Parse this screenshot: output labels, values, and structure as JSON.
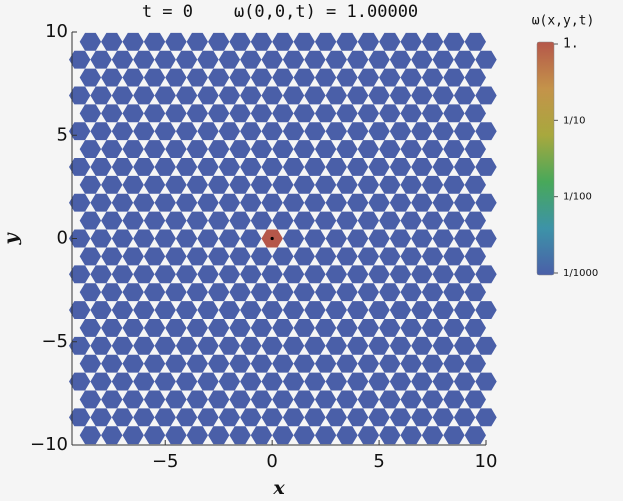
{
  "chart_data": {
    "type": "lattice",
    "title": "t = 0    ω(0,0,t) = 1.00000",
    "xlabel": "x",
    "ylabel": "y",
    "colorbar_label": "ω(x,y,t)",
    "xlim": [
      -9.5,
      10
    ],
    "ylim": [
      -10,
      10
    ],
    "xticks": [
      {
        "value": -5,
        "label": "−5"
      },
      0,
      5,
      10
    ],
    "yticks": [
      {
        "value": -10,
        "label": "−10"
      },
      {
        "value": -5,
        "label": "−5"
      },
      0,
      5,
      10
    ],
    "row_y": [
      -9.526,
      -8.66,
      -7.794,
      -6.928,
      -6.062,
      -5.196,
      -4.33,
      -3.464,
      -2.598,
      -1.732,
      -0.866,
      0,
      0.866,
      1.732,
      2.598,
      3.464,
      4.33,
      5.196,
      6.062,
      6.928,
      7.794,
      8.66,
      9.526
    ],
    "x_full_rows": [
      -9,
      -8,
      -7,
      -6,
      -5,
      -4,
      -3,
      -2,
      -1,
      0,
      1,
      2,
      3,
      4,
      5,
      6,
      7,
      8,
      9,
      10
    ],
    "x_offset_rows": [
      -8.5,
      -7.5,
      -6.5,
      -5.5,
      -4.5,
      -3.5,
      -2.5,
      -1.5,
      -0.5,
      0.5,
      1.5,
      2.5,
      3.5,
      4.5,
      5.5,
      6.5,
      7.5,
      8.5,
      9.5
    ],
    "cell_value": 0.001,
    "origin_value": 1,
    "log_scale": true,
    "clim": [
      0.001,
      1
    ],
    "cticks": [
      {
        "value": 1,
        "label": "1."
      },
      {
        "value": 0.1,
        "label": "1/10"
      },
      {
        "value": 0.01,
        "label": "1/100"
      },
      {
        "value": 0.001,
        "label": "1/1000"
      }
    ],
    "colormap": [
      "#4a5fa8",
      "#3d93a8",
      "#48a85a",
      "#a8a83e",
      "#c4934a",
      "#b5574a"
    ]
  }
}
